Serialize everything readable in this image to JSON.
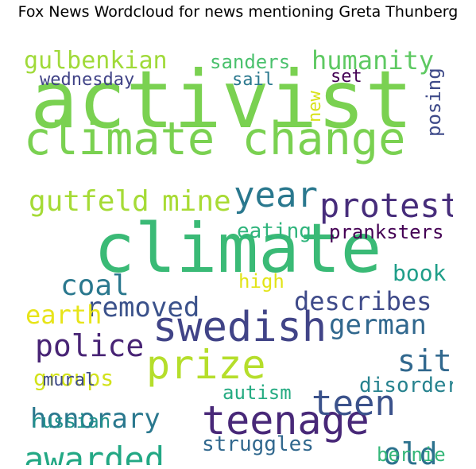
{
  "title": "Fox News Wordcloud for news mentioning Greta Thunberg",
  "words": [
    {
      "text": "activist",
      "color": "#7ad151"
    },
    {
      "text": "climate change",
      "color": "#7ad151"
    },
    {
      "text": "climate",
      "color": "#3aba76"
    },
    {
      "text": "swedish",
      "color": "#414487"
    },
    {
      "text": "teenage",
      "color": "#482878"
    },
    {
      "text": "prize",
      "color": "#b5de2b"
    },
    {
      "text": "year",
      "color": "#2a788e"
    },
    {
      "text": "protest",
      "color": "#472d7b"
    },
    {
      "text": "gutfeld",
      "color": "#a5db36"
    },
    {
      "text": "mine",
      "color": "#a8db34"
    },
    {
      "text": "teen",
      "color": "#3b528b"
    },
    {
      "text": "awarded",
      "color": "#22a884"
    },
    {
      "text": "police",
      "color": "#482475"
    },
    {
      "text": "german",
      "color": "#31688e"
    },
    {
      "text": "describes",
      "color": "#3e4a89"
    },
    {
      "text": "removed",
      "color": "#3b528b"
    },
    {
      "text": "honorary",
      "color": "#2a788e"
    },
    {
      "text": "site",
      "color": "#31688e"
    },
    {
      "text": "old",
      "color": "#2c728e"
    },
    {
      "text": "gulbenkian",
      "color": "#a0da39"
    },
    {
      "text": "humanity",
      "color": "#5ec962"
    },
    {
      "text": "groups",
      "color": "#d2e21b"
    },
    {
      "text": "coal",
      "color": "#2a788e"
    },
    {
      "text": "earth",
      "color": "#e7e419"
    },
    {
      "text": "eating",
      "color": "#2fb47c"
    },
    {
      "text": "book",
      "color": "#1f9e89"
    },
    {
      "text": "pranksters",
      "color": "#440154"
    },
    {
      "text": "high",
      "color": "#e2e418"
    },
    {
      "text": "disorder",
      "color": "#26828e"
    },
    {
      "text": "autism",
      "color": "#25ab82"
    },
    {
      "text": "struggles",
      "color": "#31688e"
    },
    {
      "text": "russian",
      "color": "#21918c"
    },
    {
      "text": "mural",
      "color": "#3e4a89"
    },
    {
      "text": "bernie",
      "color": "#35b779"
    },
    {
      "text": "sanders",
      "color": "#4ac16d"
    },
    {
      "text": "sail",
      "color": "#2a788e"
    },
    {
      "text": "set",
      "color": "#440154"
    },
    {
      "text": "wednesday",
      "color": "#414487"
    },
    {
      "text": "new",
      "color": "#d8e219"
    },
    {
      "text": "posing",
      "color": "#3e4a89"
    }
  ]
}
